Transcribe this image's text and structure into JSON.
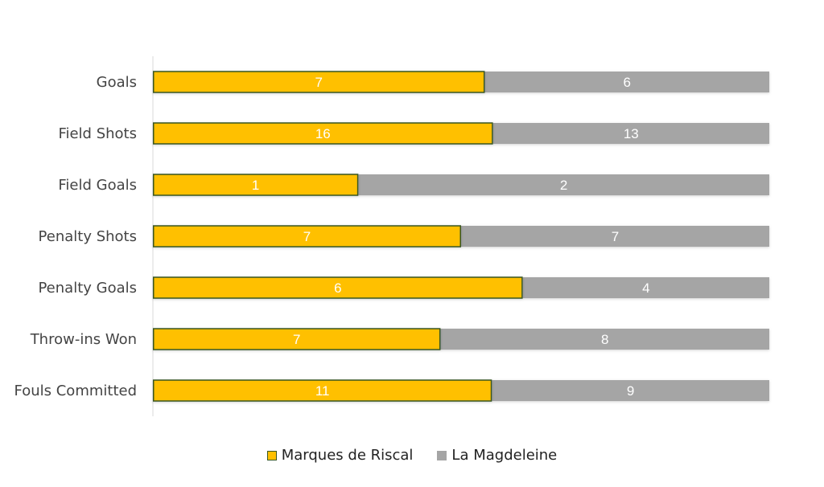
{
  "chart_data": {
    "type": "bar",
    "orientation": "horizontal",
    "stacked_percent": true,
    "categories": [
      "Goals",
      "Field Shots",
      "Field Goals",
      "Penalty Shots",
      "Penalty Goals",
      "Throw-ins Won",
      "Fouls Committed"
    ],
    "series": [
      {
        "name": "Marques de Riscal",
        "values": [
          7,
          16,
          1,
          7,
          6,
          7,
          11
        ],
        "color": "#FFC000",
        "border": "#385723"
      },
      {
        "name": "La Magdeleine",
        "values": [
          6,
          13,
          2,
          7,
          4,
          8,
          9
        ],
        "color": "#A5A5A5"
      }
    ],
    "title": "",
    "xlabel": "",
    "ylabel": "",
    "data_labels": true,
    "grid": false,
    "legend_position": "bottom"
  }
}
